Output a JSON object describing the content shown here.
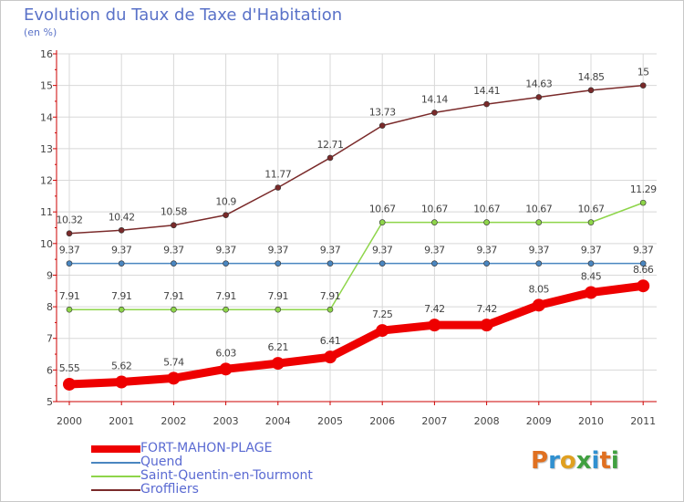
{
  "title": "Evolution du Taux de Taxe d'Habitation",
  "subtitle": "(en %)",
  "logo_text": "Proxiti",
  "colors": {
    "axis": "#cc0000",
    "grid": "#d8d8d8",
    "label": "#444444",
    "logo": [
      "#e07020",
      "#3090d0",
      "#e0a020",
      "#40a040",
      "#3090d0",
      "#e07020",
      "#40a040"
    ]
  },
  "chart_data": {
    "type": "line",
    "title": "Evolution du Taux de Taxe d'Habitation",
    "ylabel": "(en %)",
    "xlabel": "",
    "x": [
      "2000",
      "2001",
      "2002",
      "2003",
      "2004",
      "2005",
      "2006",
      "2007",
      "2008",
      "2009",
      "2010",
      "2011"
    ],
    "ylim": [
      5,
      16
    ],
    "yticks": [
      "5",
      "6",
      "7",
      "8",
      "9",
      "10",
      "11",
      "12",
      "13",
      "14",
      "15",
      "16"
    ],
    "grid": true,
    "legend": "bottom-left",
    "series": [
      {
        "name": "FORT-MAHON-PLAGE",
        "color": "#ee0000",
        "values": [
          5.55,
          5.62,
          5.74,
          6.03,
          6.21,
          6.41,
          7.25,
          7.42,
          7.42,
          8.05,
          8.45,
          8.66
        ],
        "labels": [
          "5.55",
          "5.62",
          "5.74",
          "6.03",
          "6.21",
          "6.41",
          "7.25",
          "7.42",
          "7.42",
          "8.05",
          "8.45",
          "8.66"
        ]
      },
      {
        "name": "Quend",
        "color": "#4a86c0",
        "values": [
          9.37,
          9.37,
          9.37,
          9.37,
          9.37,
          9.37,
          9.37,
          9.37,
          9.37,
          9.37,
          9.37,
          9.37
        ],
        "labels": [
          "9.37",
          "9.37",
          "9.37",
          "9.37",
          "9.37",
          "9.37",
          "9.37",
          "9.37",
          "9.37",
          "9.37",
          "9.37",
          "9.37"
        ]
      },
      {
        "name": "Saint-Quentin-en-Tourmont",
        "color": "#8ed54a",
        "values": [
          7.91,
          7.91,
          7.91,
          7.91,
          7.91,
          7.91,
          10.67,
          10.67,
          10.67,
          10.67,
          10.67,
          11.29
        ],
        "labels": [
          "7.91",
          "7.91",
          "7.91",
          "7.91",
          "7.91",
          "7.91",
          "10.67",
          "10.67",
          "10.67",
          "10.67",
          "10.67",
          "11.29"
        ]
      },
      {
        "name": "Groffliers",
        "color": "#7a2a2a",
        "values": [
          10.32,
          10.42,
          10.58,
          10.9,
          11.77,
          12.71,
          13.73,
          14.14,
          14.41,
          14.63,
          14.85,
          15
        ],
        "labels": [
          "10.32",
          "10.42",
          "10.58",
          "10.9",
          "11.77",
          "12.71",
          "13.73",
          "14.14",
          "14.41",
          "14.63",
          "14.85",
          "15"
        ]
      }
    ]
  }
}
